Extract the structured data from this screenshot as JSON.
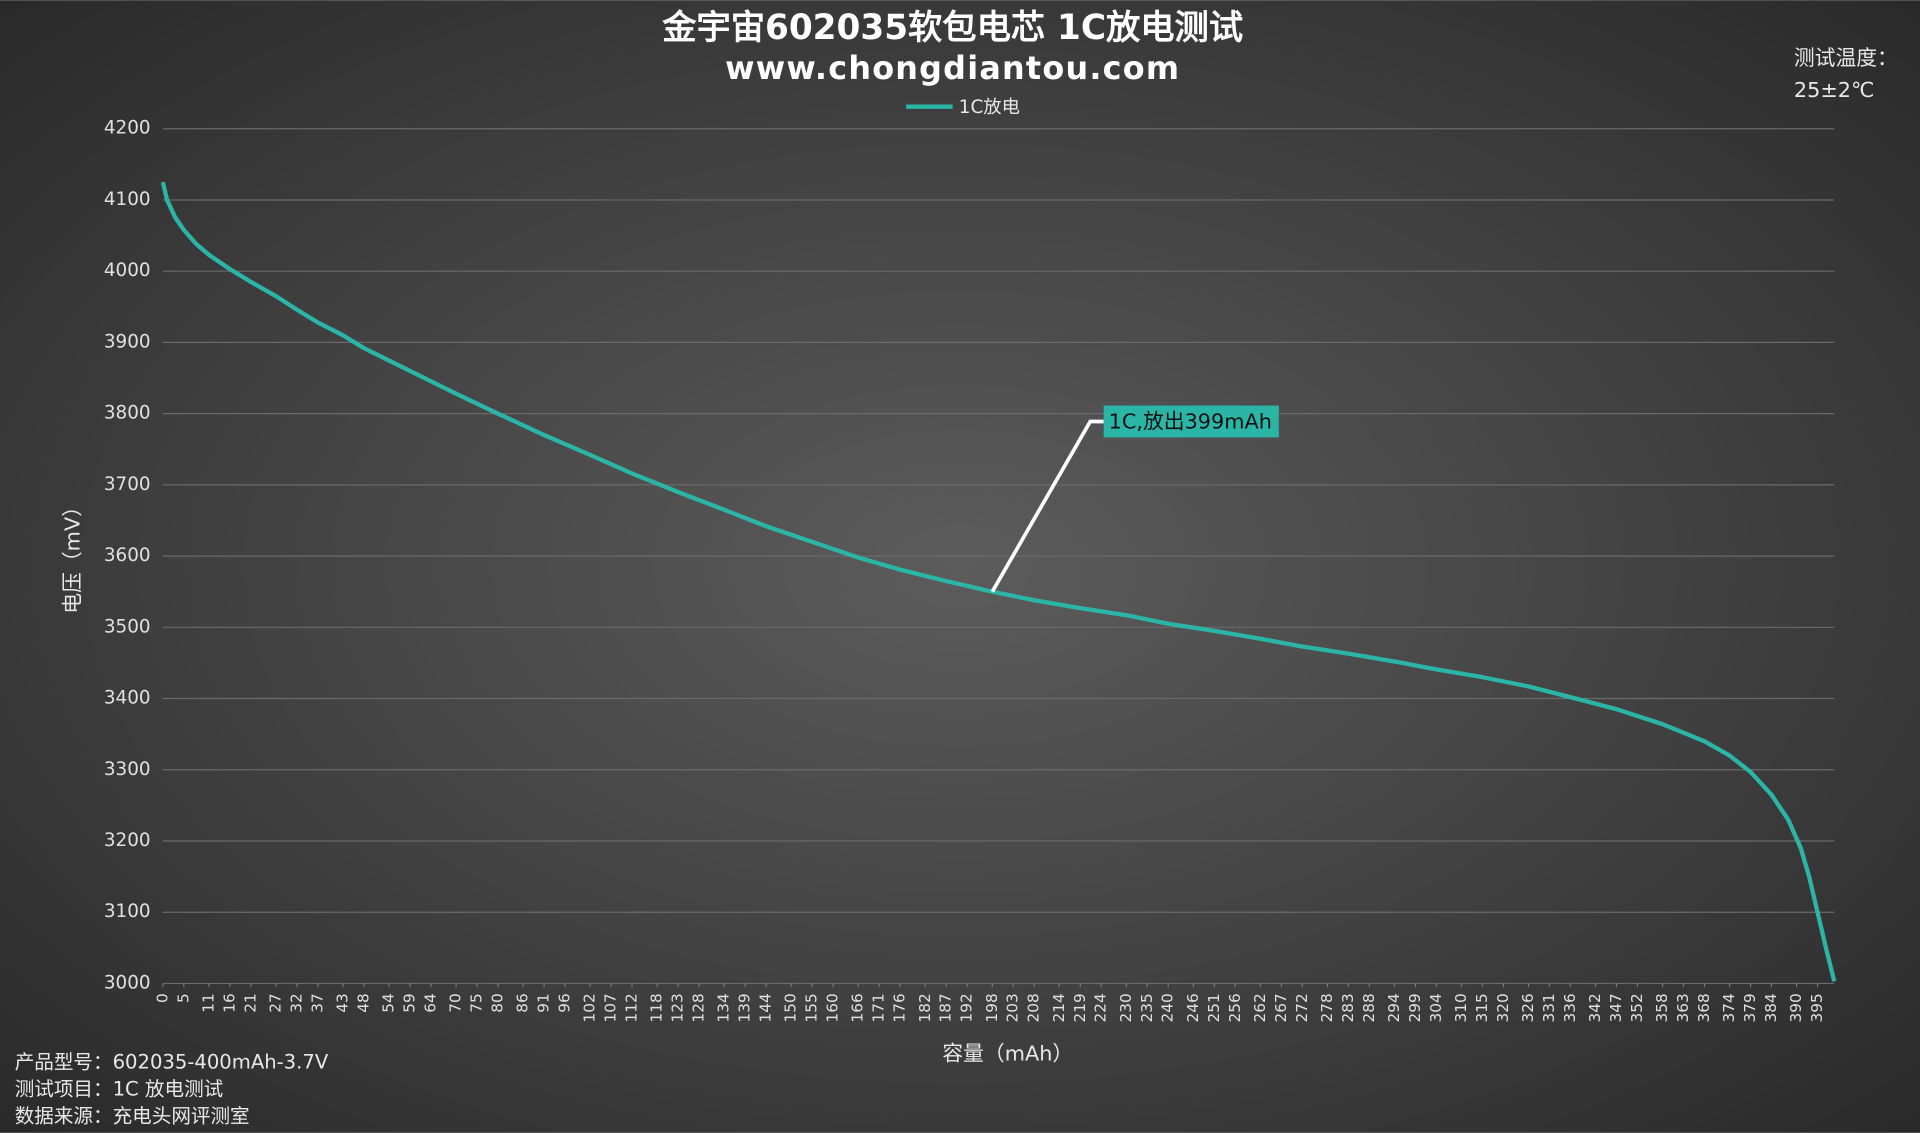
{
  "chart_data": {
    "type": "line",
    "title": "金宇宙602035软包电芯 1C放电测试",
    "subtitle": "www.chongdiantou.com",
    "note_title": "测试温度：",
    "note_value": "25±2℃",
    "xlabel": "容量（mAh）",
    "ylabel": "电压（mV）",
    "annotation": "1C,放出399mAh",
    "footer": [
      "产品型号：602035-400mAh-3.7V",
      "测试项目：1C 放电测试",
      "数据来源：充电头网评测室"
    ],
    "grid": true,
    "legend": "top",
    "x": [
      0,
      1,
      3,
      5,
      8,
      11,
      16,
      21,
      27,
      32,
      37,
      43,
      48,
      59,
      70,
      80,
      91,
      102,
      112,
      123,
      134,
      144,
      155,
      166,
      176,
      187,
      198,
      208,
      219,
      230,
      240,
      251,
      262,
      272,
      283,
      294,
      304,
      315,
      326,
      336,
      347,
      358,
      368,
      374,
      379,
      384,
      388,
      391,
      393,
      395,
      397,
      399
    ],
    "series": [
      {
        "name": "1C放电",
        "color": "#2bb5a7",
        "values": [
          4125,
          4100,
          4075,
          4058,
          4038,
          4023,
          4003,
          3985,
          3965,
          3946,
          3928,
          3910,
          3892,
          3860,
          3828,
          3800,
          3770,
          3742,
          3716,
          3690,
          3665,
          3642,
          3620,
          3598,
          3581,
          3565,
          3550,
          3538,
          3527,
          3517,
          3505,
          3495,
          3484,
          3473,
          3463,
          3452,
          3441,
          3430,
          3417,
          3402,
          3385,
          3364,
          3340,
          3320,
          3297,
          3265,
          3230,
          3190,
          3150,
          3100,
          3050,
          3003
        ]
      }
    ],
    "xlim": [
      0,
      399
    ],
    "xticks": [
      0,
      5,
      11,
      16,
      21,
      27,
      32,
      37,
      43,
      48,
      54,
      59,
      64,
      70,
      75,
      80,
      86,
      91,
      96,
      102,
      107,
      112,
      118,
      123,
      128,
      134,
      139,
      144,
      150,
      155,
      160,
      166,
      171,
      176,
      182,
      187,
      192,
      198,
      203,
      208,
      214,
      219,
      224,
      230,
      235,
      240,
      246,
      251,
      256,
      262,
      267,
      272,
      278,
      283,
      288,
      294,
      299,
      304,
      310,
      315,
      320,
      326,
      331,
      336,
      342,
      347,
      352,
      358,
      363,
      368,
      374,
      379,
      384,
      390,
      395
    ],
    "ylim": [
      3000,
      4200
    ],
    "yticks": [
      3000,
      3100,
      3200,
      3300,
      3400,
      3500,
      3600,
      3700,
      3800,
      3900,
      4000,
      4100,
      4200
    ]
  }
}
